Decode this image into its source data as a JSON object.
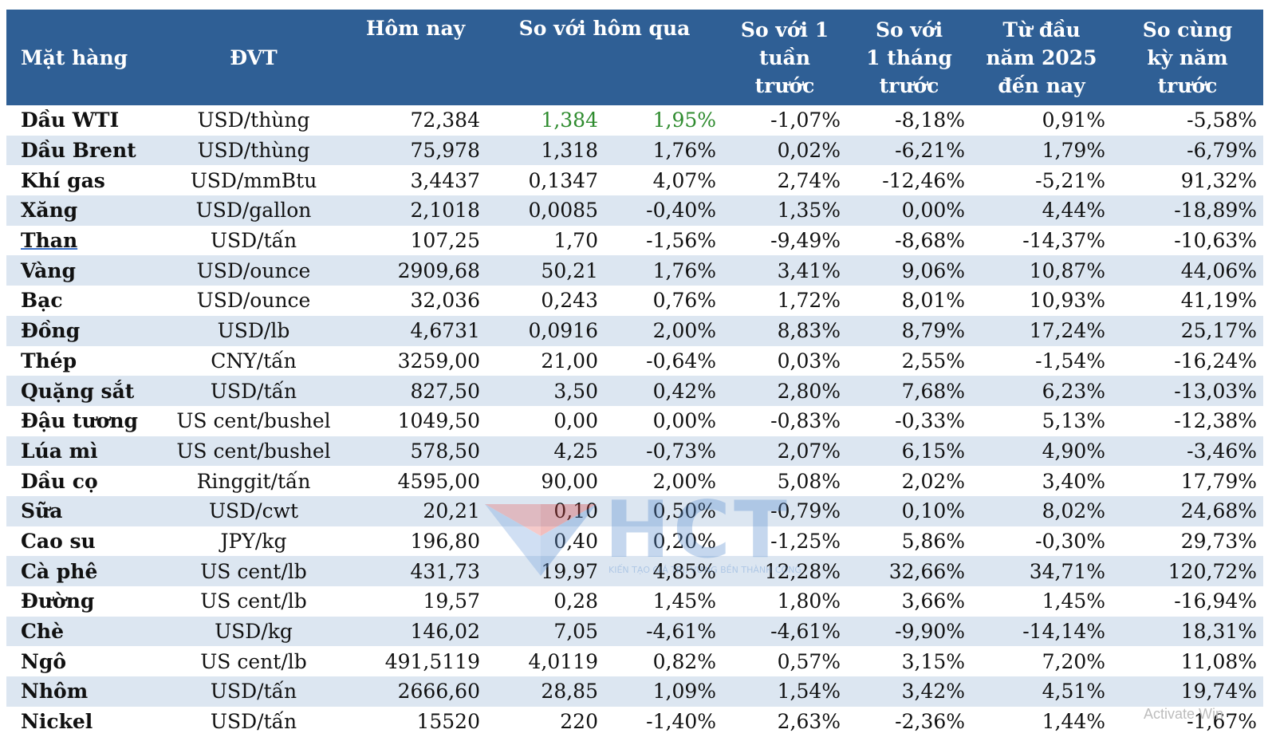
{
  "header": {
    "col_item": "Mặt hàng",
    "col_unit": "ĐVT",
    "col_today": "Hôm nay",
    "col_vs_yesterday": "So với hôm qua",
    "col_vs_week": "So với 1 tuần trước",
    "col_vs_month": "So với 1 tháng trước",
    "col_ytd": "Từ đầu năm 2025 đến nay",
    "col_yoy": "So cùng kỳ năm trước"
  },
  "rows": [
    {
      "name": "Dầu WTI",
      "unit": "USD/thùng",
      "today": "72,384",
      "chg": "1,384",
      "pct": "1,95%",
      "week": "-1,07%",
      "month": "-8,18%",
      "ytd": "0,91%",
      "yoy": "-5,58%"
    },
    {
      "name": "Dầu Brent",
      "unit": "USD/thùng",
      "today": "75,978",
      "chg": "1,318",
      "pct": "1,76%",
      "week": "0,02%",
      "month": "-6,21%",
      "ytd": "1,79%",
      "yoy": "-6,79%"
    },
    {
      "name": "Khí gas",
      "unit": "USD/mmBtu",
      "today": "3,4437",
      "chg": "0,1347",
      "pct": "4,07%",
      "week": "2,74%",
      "month": "-12,46%",
      "ytd": "-5,21%",
      "yoy": "91,32%"
    },
    {
      "name": "Xăng",
      "unit": "USD/gallon",
      "today": "2,1018",
      "chg": "0,0085",
      "pct": "-0,40%",
      "week": "1,35%",
      "month": "0,00%",
      "ytd": "4,44%",
      "yoy": "-18,89%"
    },
    {
      "name": "Than",
      "unit": "USD/tấn",
      "today": "107,25",
      "chg": "1,70",
      "pct": "-1,56%",
      "week": "-9,49%",
      "month": "-8,68%",
      "ytd": "-14,37%",
      "yoy": "-10,63%"
    },
    {
      "name": "Vàng",
      "unit": "USD/ounce",
      "today": "2909,68",
      "chg": "50,21",
      "pct": "1,76%",
      "week": "3,41%",
      "month": "9,06%",
      "ytd": "10,87%",
      "yoy": "44,06%"
    },
    {
      "name": "Bạc",
      "unit": "USD/ounce",
      "today": "32,036",
      "chg": "0,243",
      "pct": "0,76%",
      "week": "1,72%",
      "month": "8,01%",
      "ytd": "10,93%",
      "yoy": "41,19%"
    },
    {
      "name": "Đồng",
      "unit": "USD/lb",
      "today": "4,6731",
      "chg": "0,0916",
      "pct": "2,00%",
      "week": "8,83%",
      "month": "8,79%",
      "ytd": "17,24%",
      "yoy": "25,17%"
    },
    {
      "name": "Thép",
      "unit": "CNY/tấn",
      "today": "3259,00",
      "chg": "21,00",
      "pct": "-0,64%",
      "week": "0,03%",
      "month": "2,55%",
      "ytd": "-1,54%",
      "yoy": "-16,24%"
    },
    {
      "name": "Quặng sắt",
      "unit": "USD/tấn",
      "today": "827,50",
      "chg": "3,50",
      "pct": "0,42%",
      "week": "2,80%",
      "month": "7,68%",
      "ytd": "6,23%",
      "yoy": "-13,03%"
    },
    {
      "name": "Đậu tương",
      "unit": "US cent/bushel",
      "today": "1049,50",
      "chg": "0,00",
      "pct": "0,00%",
      "week": "-0,83%",
      "month": "-0,33%",
      "ytd": "5,13%",
      "yoy": "-12,38%"
    },
    {
      "name": "Lúa mì",
      "unit": "US cent/bushel",
      "today": "578,50",
      "chg": "4,25",
      "pct": "-0,73%",
      "week": "2,07%",
      "month": "6,15%",
      "ytd": "4,90%",
      "yoy": "-3,46%"
    },
    {
      "name": "Dầu cọ",
      "unit": "Ringgit/tấn",
      "today": "4595,00",
      "chg": "90,00",
      "pct": "2,00%",
      "week": "5,08%",
      "month": "2,02%",
      "ytd": "3,40%",
      "yoy": "17,79%"
    },
    {
      "name": "Sữa",
      "unit": "USD/cwt",
      "today": "20,21",
      "chg": "0,10",
      "pct": "0,50%",
      "week": "-0,79%",
      "month": "0,10%",
      "ytd": "8,02%",
      "yoy": "24,68%"
    },
    {
      "name": "Cao su",
      "unit": "JPY/kg",
      "today": "196,80",
      "chg": "0,40",
      "pct": "0,20%",
      "week": "-1,25%",
      "month": "5,86%",
      "ytd": "-0,30%",
      "yoy": "29,73%"
    },
    {
      "name": "Cà phê",
      "unit": "US cent/lb",
      "today": "431,73",
      "chg": "19,97",
      "pct": "4,85%",
      "week": "12,28%",
      "month": "32,66%",
      "ytd": "34,71%",
      "yoy": "120,72%"
    },
    {
      "name": "Đường",
      "unit": "US cent/lb",
      "today": "19,57",
      "chg": "0,28",
      "pct": "1,45%",
      "week": "1,80%",
      "month": "3,66%",
      "ytd": "1,45%",
      "yoy": "-16,94%"
    },
    {
      "name": "Chè",
      "unit": "USD/kg",
      "today": "146,02",
      "chg": "7,05",
      "pct": "-4,61%",
      "week": "-4,61%",
      "month": "-9,90%",
      "ytd": "-14,14%",
      "yoy": "18,31%"
    },
    {
      "name": "Ngô",
      "unit": "US cent/lb",
      "today": "491,5119",
      "chg": "4,0119",
      "pct": "0,82%",
      "week": "0,57%",
      "month": "3,15%",
      "ytd": "7,20%",
      "yoy": "11,08%"
    },
    {
      "name": "Nhôm",
      "unit": "USD/tấn",
      "today": "2666,60",
      "chg": "28,85",
      "pct": "1,09%",
      "week": "1,54%",
      "month": "3,42%",
      "ytd": "4,51%",
      "yoy": "19,74%"
    },
    {
      "name": "Nickel",
      "unit": "USD/tấn",
      "today": "15520",
      "chg": "220",
      "pct": "-1,40%",
      "week": "2,63%",
      "month": "-2,36%",
      "ytd": "1,44%",
      "yoy": "-1,67%"
    }
  ],
  "watermark": {
    "brand": "HCT",
    "slogan": "KIẾN TẠO GIÁ TRỊ, VỮNG BỀN THÀNH CÔNG"
  },
  "os_overlay": "Activate Win",
  "colors": {
    "header_bg": "#2f5f95",
    "row_alt_bg": "#dce6f1",
    "positive_green": "#2e8b2e"
  }
}
